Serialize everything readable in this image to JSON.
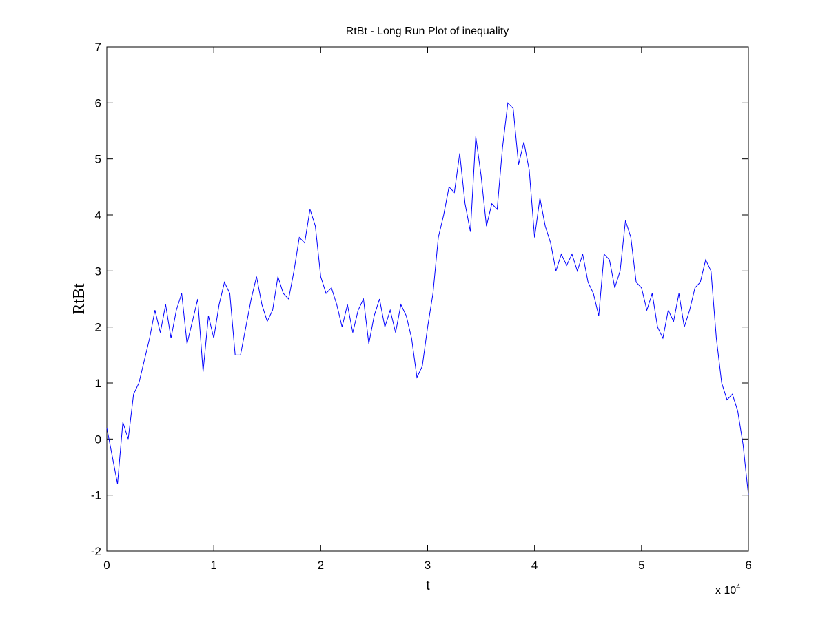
{
  "chart_data": {
    "type": "line",
    "title": "RtBt - Long Run Plot of  inequality",
    "x_label": "t",
    "y_label": "RtBt",
    "x_multiplier": {
      "base": "x 10",
      "exponent": "4"
    },
    "xlim": [
      0,
      60000
    ],
    "ylim": [
      -2,
      7
    ],
    "xticks": [
      0,
      {
        "value": 10000,
        "label": "1"
      },
      {
        "value": 20000,
        "label": "2"
      },
      {
        "value": 30000,
        "label": "3"
      },
      {
        "value": 40000,
        "label": "4"
      },
      {
        "value": 50000,
        "label": "5"
      },
      {
        "value": 60000,
        "label": "6"
      }
    ],
    "yticks": [
      -2,
      -1,
      0,
      1,
      2,
      3,
      4,
      5,
      6,
      7
    ],
    "grid": false,
    "x": [
      0,
      500,
      1000,
      1500,
      2000,
      2500,
      3000,
      3500,
      4000,
      4500,
      5000,
      5500,
      6000,
      6500,
      7000,
      7500,
      8000,
      8500,
      9000,
      9500,
      10000,
      10500,
      11000,
      11500,
      12000,
      12500,
      13000,
      13500,
      14000,
      14500,
      15000,
      15500,
      16000,
      16500,
      17000,
      17500,
      18000,
      18500,
      19000,
      19500,
      20000,
      20500,
      21000,
      21500,
      22000,
      22500,
      23000,
      23500,
      24000,
      24500,
      25000,
      25500,
      26000,
      26500,
      27000,
      27500,
      28000,
      28500,
      29000,
      29500,
      30000,
      30500,
      31000,
      31500,
      32000,
      32500,
      33000,
      33500,
      34000,
      34500,
      35000,
      35500,
      36000,
      36500,
      37000,
      37500,
      38000,
      38500,
      39000,
      39500,
      40000,
      40500,
      41000,
      41500,
      42000,
      42500,
      43000,
      43500,
      44000,
      44500,
      45000,
      45500,
      46000,
      46500,
      47000,
      47500,
      48000,
      48500,
      49000,
      49500,
      50000,
      50500,
      51000,
      51500,
      52000,
      52500,
      53000,
      53500,
      54000,
      54500,
      55000,
      55500,
      56000,
      56500,
      57000,
      57500,
      58000,
      58500,
      59000,
      59500,
      60000
    ],
    "series": [
      {
        "name": "RtBt",
        "color": "#0000ff",
        "values": [
          0.2,
          -0.3,
          -0.8,
          0.3,
          0.0,
          0.8,
          1.0,
          1.4,
          1.8,
          2.3,
          1.9,
          2.4,
          1.8,
          2.3,
          2.6,
          1.7,
          2.1,
          2.5,
          1.2,
          2.2,
          1.8,
          2.4,
          2.8,
          2.6,
          1.5,
          1.5,
          2.0,
          2.5,
          2.9,
          2.4,
          2.1,
          2.3,
          2.9,
          2.6,
          2.5,
          3.0,
          3.6,
          3.5,
          4.1,
          3.8,
          2.9,
          2.6,
          2.7,
          2.4,
          2.0,
          2.4,
          1.9,
          2.3,
          2.5,
          1.7,
          2.2,
          2.5,
          2.0,
          2.3,
          1.9,
          2.4,
          2.2,
          1.8,
          1.1,
          1.3,
          2.0,
          2.6,
          3.6,
          4.0,
          4.5,
          4.4,
          5.1,
          4.2,
          3.7,
          5.4,
          4.7,
          3.8,
          4.2,
          4.1,
          5.2,
          6.0,
          5.9,
          4.9,
          5.3,
          4.8,
          3.6,
          4.3,
          3.8,
          3.5,
          3.0,
          3.3,
          3.1,
          3.3,
          3.0,
          3.3,
          2.8,
          2.6,
          2.2,
          3.3,
          3.2,
          2.7,
          3.0,
          3.9,
          3.6,
          2.8,
          2.7,
          2.3,
          2.6,
          2.0,
          1.8,
          2.3,
          2.1,
          2.6,
          2.0,
          2.3,
          2.7,
          2.8,
          3.2,
          3.0,
          1.8,
          1.0,
          0.7,
          0.8,
          0.5,
          -0.1,
          -1.0
        ]
      }
    ]
  }
}
